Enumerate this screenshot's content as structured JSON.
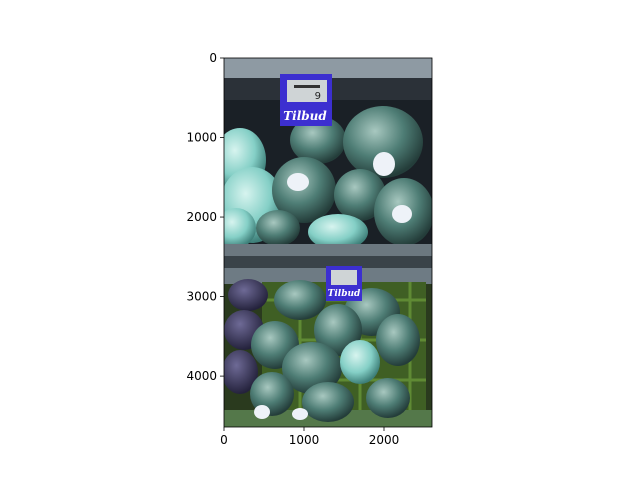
{
  "figure": {
    "kind": "matplotlib-imshow",
    "image_extent": {
      "width": 2600,
      "height": 4640
    },
    "x_ticks": [
      "0",
      "1000",
      "2000"
    ],
    "y_ticks": [
      "0",
      "1000",
      "2000",
      "3000",
      "4000"
    ],
    "x_tick_values": [
      0,
      1000,
      2000
    ],
    "y_tick_values": [
      0,
      1000,
      2000,
      3000,
      4000
    ]
  },
  "photo": {
    "subject": "Plastic-wrapped broccoli heads on two supermarket shelves",
    "upper_label": {
      "brand": "Tilbud",
      "price_display": "9"
    },
    "lower_label": {
      "brand": "Tilbud"
    },
    "colors": {
      "shelf_dark": "#1b2128",
      "broccoli_teal": "#3f6e68",
      "cabbage_purple": "#3c3a5c",
      "crate_green": "#4a6a2a",
      "label_blue": "#3c2fd0"
    }
  }
}
